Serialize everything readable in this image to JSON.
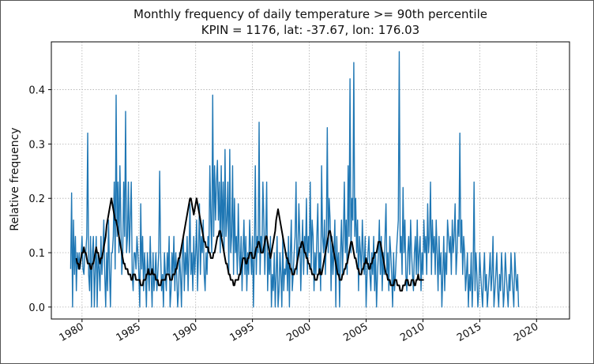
{
  "chart_data": {
    "type": "line",
    "title": "Monthly frequency of daily temperature >= 90th percentile",
    "subtitle": "KPIN = 1176, lat: -37.67, lon: 176.03",
    "xlabel": "",
    "ylabel": "Relative frequency",
    "xlim": [
      1977.3,
      2022.9
    ],
    "ylim": [
      -0.022,
      0.488
    ],
    "xticks": [
      "1980",
      "1985",
      "1990",
      "1995",
      "2000",
      "2005",
      "2010",
      "2015",
      "2020"
    ],
    "yticks": [
      "0.0",
      "0.1",
      "0.2",
      "0.3",
      "0.4"
    ],
    "grid": true,
    "series": [
      {
        "color": "#1f77b4",
        "x_start": 1979.0,
        "x_step": 0.0833333,
        "values": [
          0.07,
          0.21,
          0.0,
          0.16,
          0.06,
          0.13,
          0.03,
          0.1,
          0.07,
          0.1,
          0.07,
          0.09,
          0.13,
          0.07,
          0.06,
          0.1,
          0.1,
          0.13,
          0.32,
          0.06,
          0.03,
          0.13,
          0.0,
          0.1,
          0.13,
          0.0,
          0.07,
          0.13,
          0.0,
          0.1,
          0.07,
          0.03,
          0.13,
          0.06,
          0.1,
          0.16,
          0.06,
          0.0,
          0.1,
          0.03,
          0.16,
          0.07,
          0.0,
          0.1,
          0.1,
          0.13,
          0.23,
          0.07,
          0.39,
          0.13,
          0.23,
          0.1,
          0.26,
          0.16,
          0.06,
          0.1,
          0.23,
          0.13,
          0.36,
          0.1,
          0.13,
          0.23,
          0.1,
          0.16,
          0.23,
          0.06,
          0.03,
          0.1,
          0.1,
          0.07,
          0.13,
          0.1,
          0.06,
          0.0,
          0.19,
          0.07,
          0.13,
          0.03,
          0.1,
          0.06,
          0.0,
          0.1,
          0.06,
          0.03,
          0.13,
          0.06,
          0.0,
          0.1,
          0.03,
          0.06,
          0.1,
          0.03,
          0.06,
          0.1,
          0.25,
          0.1,
          0.03,
          0.06,
          0.0,
          0.1,
          0.06,
          0.03,
          0.1,
          0.06,
          0.13,
          0.0,
          0.03,
          0.1,
          0.06,
          0.13,
          0.03,
          0.1,
          0.06,
          0.0,
          0.03,
          0.1,
          0.06,
          0.0,
          0.1,
          0.13,
          0.03,
          0.1,
          0.06,
          0.13,
          0.03,
          0.1,
          0.19,
          0.06,
          0.1,
          0.03,
          0.13,
          0.06,
          0.1,
          0.16,
          0.03,
          0.1,
          0.19,
          0.06,
          0.13,
          0.1,
          0.16,
          0.06,
          0.03,
          0.1,
          0.06,
          0.13,
          0.1,
          0.26,
          0.16,
          0.1,
          0.39,
          0.13,
          0.26,
          0.16,
          0.23,
          0.27,
          0.16,
          0.23,
          0.1,
          0.26,
          0.13,
          0.23,
          0.1,
          0.29,
          0.13,
          0.16,
          0.23,
          0.06,
          0.29,
          0.1,
          0.13,
          0.26,
          0.06,
          0.2,
          0.1,
          0.13,
          0.06,
          0.19,
          0.1,
          0.06,
          0.13,
          0.03,
          0.1,
          0.16,
          0.06,
          0.13,
          0.03,
          0.1,
          0.06,
          0.16,
          0.1,
          0.06,
          0.13,
          0.0,
          0.1,
          0.26,
          0.06,
          0.13,
          0.1,
          0.34,
          0.06,
          0.13,
          0.1,
          0.23,
          0.16,
          0.06,
          0.13,
          0.23,
          0.03,
          0.1,
          0.06,
          0.13,
          0.0,
          0.06,
          0.03,
          0.1,
          0.0,
          0.06,
          0.13,
          0.0,
          0.03,
          0.1,
          0.06,
          0.0,
          0.13,
          0.03,
          0.07,
          0.06,
          0.1,
          0.03,
          0.13,
          0.0,
          0.1,
          0.16,
          0.03,
          0.06,
          0.1,
          0.13,
          0.23,
          0.06,
          0.1,
          0.19,
          0.13,
          0.03,
          0.1,
          0.16,
          0.06,
          0.13,
          0.1,
          0.2,
          0.06,
          0.13,
          0.1,
          0.23,
          0.07,
          0.16,
          0.13,
          0.03,
          0.1,
          0.06,
          0.13,
          0.19,
          0.06,
          0.1,
          0.03,
          0.26,
          0.13,
          0.1,
          0.16,
          0.06,
          0.13,
          0.33,
          0.1,
          0.2,
          0.16,
          0.03,
          0.13,
          0.06,
          0.1,
          0.16,
          0.0,
          0.13,
          0.06,
          0.1,
          0.0,
          0.1,
          0.16,
          0.06,
          0.13,
          0.23,
          0.1,
          0.16,
          0.06,
          0.26,
          0.13,
          0.42,
          0.1,
          0.2,
          0.16,
          0.45,
          0.13,
          0.2,
          0.1,
          0.16,
          0.03,
          0.13,
          0.1,
          0.06,
          0.16,
          0.1,
          0.06,
          0.13,
          0.0,
          0.06,
          0.1,
          0.13,
          0.06,
          0.03,
          0.1,
          0.06,
          0.13,
          0.03,
          0.1,
          0.0,
          0.06,
          0.1,
          0.16,
          0.06,
          0.13,
          0.03,
          0.1,
          0.06,
          0.13,
          0.19,
          0.06,
          0.1,
          0.03,
          0.13,
          0.1,
          0.06,
          0.0,
          0.1,
          0.03,
          0.06,
          0.1,
          0.13,
          0.16,
          0.47,
          0.1,
          0.13,
          0.06,
          0.22,
          0.1,
          0.16,
          0.06,
          0.03,
          0.1,
          0.13,
          0.06,
          0.16,
          0.1,
          0.06,
          0.03,
          0.1,
          0.13,
          0.06,
          0.16,
          0.06,
          0.1,
          0.13,
          0.03,
          0.1,
          0.06,
          0.16,
          0.1,
          0.13,
          0.06,
          0.19,
          0.1,
          0.13,
          0.23,
          0.06,
          0.16,
          0.1,
          0.13,
          0.06,
          0.16,
          0.1,
          0.03,
          0.13,
          0.06,
          0.1,
          0.0,
          0.06,
          0.13,
          0.03,
          0.1,
          0.06,
          0.16,
          0.13,
          0.1,
          0.13,
          0.06,
          0.16,
          0.1,
          0.13,
          0.19,
          0.06,
          0.1,
          0.16,
          0.13,
          0.32,
          0.1,
          0.16,
          0.06,
          0.13,
          0.1,
          0.03,
          0.06,
          0.1,
          0.0,
          0.06,
          0.03,
          0.1,
          0.0,
          0.06,
          0.23,
          0.03,
          0.1,
          0.06,
          0.0,
          0.03,
          0.1,
          0.06,
          0.03,
          0.0,
          0.06,
          0.1,
          0.03,
          0.06,
          0.0,
          0.03,
          0.06,
          0.1,
          0.03,
          0.06,
          0.13,
          0.0,
          0.03,
          0.06,
          0.1,
          0.03,
          0.0,
          0.06,
          0.03,
          0.1,
          0.06,
          0.0,
          0.03,
          0.1,
          0.06,
          0.03,
          0.0,
          0.06,
          0.03,
          0.1,
          0.06,
          0.03,
          0.0,
          0.1,
          0.06,
          0.03,
          0.06,
          0.0
        ]
      },
      {
        "color": "#000000",
        "x_start": 1979.5,
        "x_step": 0.0833333,
        "values": [
          0.09,
          0.08,
          0.08,
          0.07,
          0.08,
          0.09,
          0.1,
          0.1,
          0.11,
          0.1,
          0.1,
          0.09,
          0.08,
          0.08,
          0.08,
          0.07,
          0.07,
          0.08,
          0.08,
          0.09,
          0.1,
          0.11,
          0.1,
          0.1,
          0.09,
          0.08,
          0.09,
          0.09,
          0.1,
          0.11,
          0.12,
          0.13,
          0.15,
          0.16,
          0.17,
          0.18,
          0.19,
          0.2,
          0.19,
          0.18,
          0.17,
          0.16,
          0.16,
          0.15,
          0.14,
          0.13,
          0.12,
          0.11,
          0.1,
          0.09,
          0.08,
          0.08,
          0.07,
          0.07,
          0.07,
          0.06,
          0.06,
          0.06,
          0.05,
          0.05,
          0.06,
          0.06,
          0.06,
          0.05,
          0.05,
          0.05,
          0.05,
          0.05,
          0.04,
          0.04,
          0.04,
          0.05,
          0.05,
          0.05,
          0.06,
          0.06,
          0.07,
          0.06,
          0.06,
          0.06,
          0.07,
          0.06,
          0.06,
          0.06,
          0.05,
          0.05,
          0.05,
          0.04,
          0.04,
          0.04,
          0.05,
          0.05,
          0.05,
          0.05,
          0.05,
          0.06,
          0.06,
          0.06,
          0.06,
          0.05,
          0.05,
          0.05,
          0.06,
          0.06,
          0.06,
          0.07,
          0.07,
          0.08,
          0.09,
          0.09,
          0.1,
          0.11,
          0.12,
          0.13,
          0.14,
          0.15,
          0.16,
          0.17,
          0.18,
          0.19,
          0.2,
          0.2,
          0.19,
          0.18,
          0.17,
          0.18,
          0.19,
          0.2,
          0.19,
          0.18,
          0.17,
          0.16,
          0.15,
          0.14,
          0.13,
          0.12,
          0.12,
          0.11,
          0.11,
          0.11,
          0.1,
          0.1,
          0.09,
          0.09,
          0.09,
          0.1,
          0.1,
          0.11,
          0.12,
          0.13,
          0.13,
          0.14,
          0.14,
          0.13,
          0.12,
          0.11,
          0.1,
          0.09,
          0.08,
          0.08,
          0.07,
          0.06,
          0.06,
          0.05,
          0.05,
          0.05,
          0.04,
          0.04,
          0.05,
          0.05,
          0.05,
          0.05,
          0.06,
          0.06,
          0.07,
          0.08,
          0.09,
          0.09,
          0.09,
          0.08,
          0.08,
          0.09,
          0.09,
          0.1,
          0.1,
          0.1,
          0.09,
          0.09,
          0.09,
          0.1,
          0.11,
          0.11,
          0.12,
          0.12,
          0.11,
          0.1,
          0.1,
          0.1,
          0.11,
          0.12,
          0.13,
          0.13,
          0.12,
          0.11,
          0.1,
          0.09,
          0.1,
          0.11,
          0.12,
          0.13,
          0.14,
          0.16,
          0.17,
          0.18,
          0.17,
          0.16,
          0.15,
          0.14,
          0.13,
          0.12,
          0.11,
          0.1,
          0.09,
          0.09,
          0.08,
          0.08,
          0.07,
          0.07,
          0.06,
          0.06,
          0.06,
          0.07,
          0.07,
          0.08,
          0.09,
          0.1,
          0.11,
          0.11,
          0.12,
          0.12,
          0.11,
          0.1,
          0.1,
          0.09,
          0.09,
          0.08,
          0.08,
          0.07,
          0.07,
          0.06,
          0.06,
          0.06,
          0.05,
          0.05,
          0.05,
          0.06,
          0.06,
          0.07,
          0.06,
          0.06,
          0.07,
          0.08,
          0.09,
          0.1,
          0.11,
          0.12,
          0.13,
          0.14,
          0.14,
          0.13,
          0.12,
          0.11,
          0.1,
          0.09,
          0.08,
          0.07,
          0.06,
          0.06,
          0.05,
          0.05,
          0.05,
          0.06,
          0.06,
          0.07,
          0.07,
          0.08,
          0.08,
          0.09,
          0.1,
          0.11,
          0.12,
          0.12,
          0.11,
          0.1,
          0.09,
          0.09,
          0.08,
          0.07,
          0.07,
          0.06,
          0.06,
          0.06,
          0.07,
          0.07,
          0.08,
          0.08,
          0.09,
          0.08,
          0.08,
          0.07,
          0.07,
          0.08,
          0.08,
          0.09,
          0.09,
          0.1,
          0.1,
          0.1,
          0.11,
          0.12,
          0.12,
          0.12,
          0.11,
          0.1,
          0.09,
          0.08,
          0.07,
          0.06,
          0.06,
          0.05,
          0.05,
          0.05,
          0.04,
          0.04,
          0.04,
          0.04,
          0.05,
          0.05,
          0.05,
          0.04,
          0.04,
          0.04,
          0.03,
          0.03,
          0.03,
          0.04,
          0.04,
          0.04,
          0.05,
          0.05,
          0.05,
          0.04,
          0.04,
          0.04,
          0.05,
          0.05,
          0.05,
          0.04,
          0.04,
          0.05,
          0.05,
          0.06,
          0.05,
          0.05,
          0.05,
          0.05,
          0.05,
          0.05
        ]
      }
    ]
  }
}
